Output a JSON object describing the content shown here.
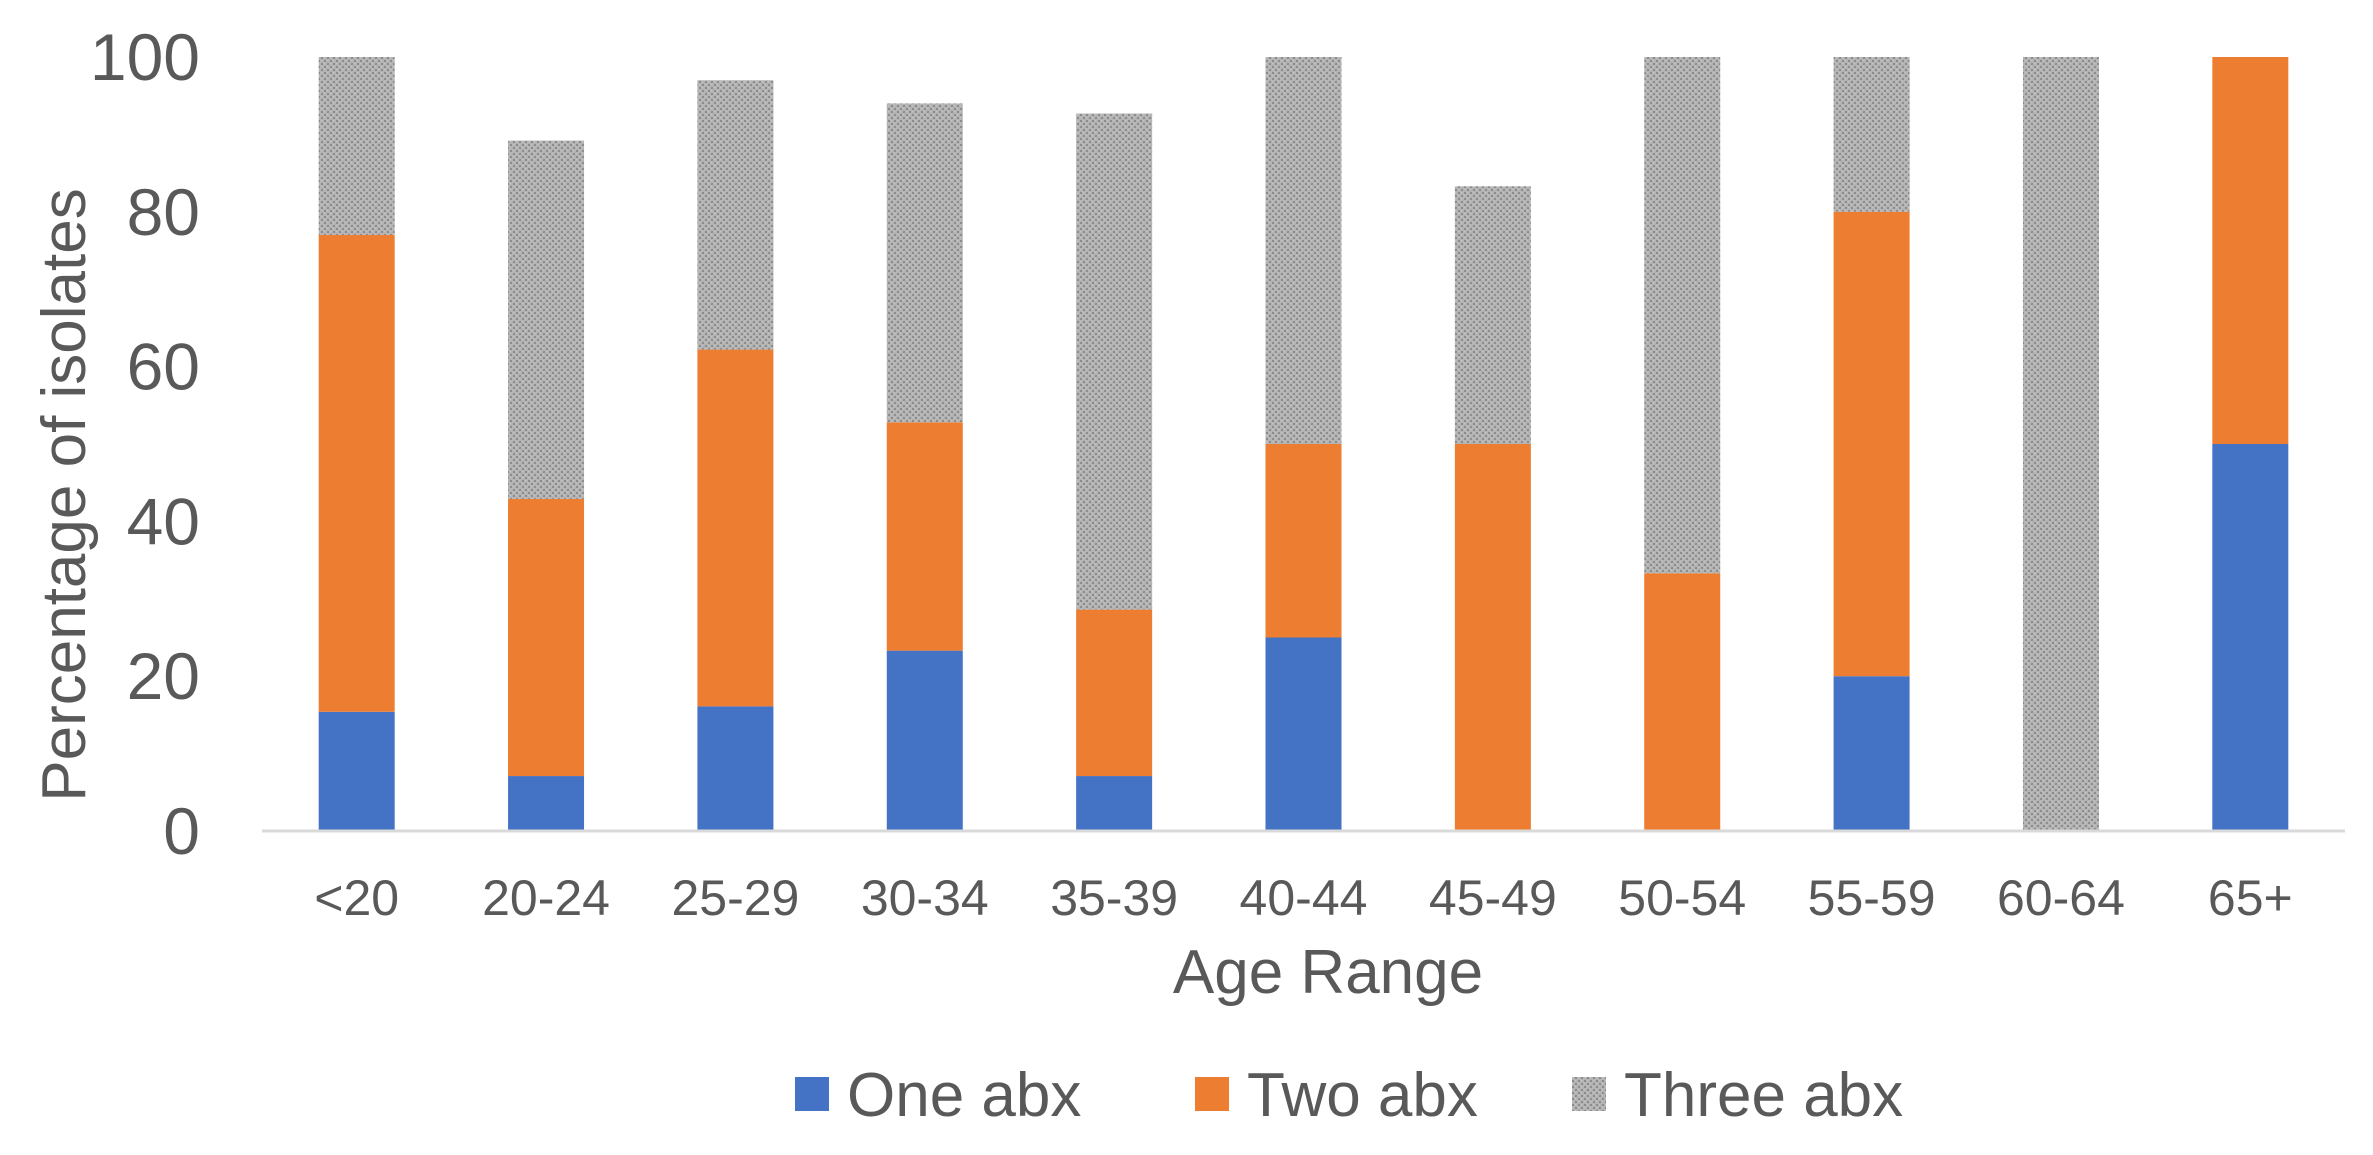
{
  "chart_data": {
    "type": "bar",
    "stacked": true,
    "categories": [
      "<20",
      "20-24",
      "25-29",
      "30-34",
      "35-39",
      "40-44",
      "45-49",
      "50-54",
      "55-59",
      "60-64",
      "65+"
    ],
    "series": [
      {
        "name": "One abx",
        "color": "#4472C4",
        "values": [
          15.4,
          7.1,
          16.1,
          23.3,
          7.1,
          25,
          0,
          0,
          20,
          0,
          50
        ]
      },
      {
        "name": "Two abx",
        "color": "#ED7D31",
        "values": [
          61.6,
          35.8,
          46.1,
          29.5,
          21.5,
          25,
          50,
          33.3,
          60,
          0,
          50
        ]
      },
      {
        "name": "Three abx",
        "color": "#A5A5A5",
        "pattern": "dotted-gray",
        "values": [
          23,
          46.3,
          34.8,
          41.2,
          64.1,
          50,
          33.3,
          66.7,
          20,
          100,
          0
        ]
      }
    ],
    "title": "",
    "xlabel": "Age Range",
    "ylabel": "Percentage of isolates",
    "ylim": [
      0,
      100
    ],
    "yticks": [
      0,
      20,
      40,
      60,
      80,
      100
    ],
    "grid": false,
    "legend": "bottom"
  }
}
